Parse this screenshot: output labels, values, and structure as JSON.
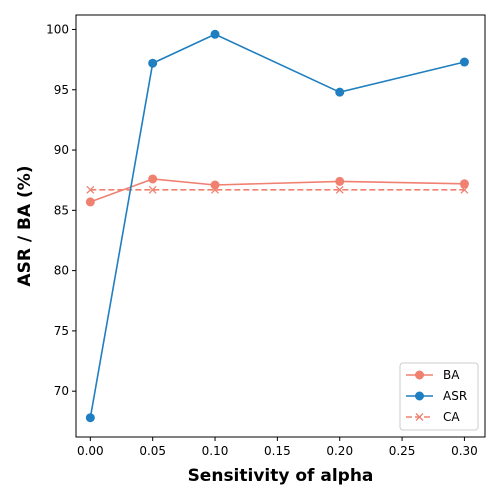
{
  "chart_data": {
    "type": "line",
    "title": "",
    "xlabel": "Sensitivity of alpha",
    "ylabel": "ASR / BA (%)",
    "x": [
      0.0,
      0.05,
      0.1,
      0.2,
      0.3
    ],
    "xlim": [
      -0.0115,
      0.3165
    ],
    "ylim": [
      66.2,
      101.2
    ],
    "xticks": [
      "0.00",
      "0.05",
      "0.10",
      "0.15",
      "0.20",
      "0.25",
      "0.30"
    ],
    "yticks": [
      "70",
      "75",
      "80",
      "85",
      "90",
      "95",
      "100"
    ],
    "grid": false,
    "legend_position": "lower-right",
    "series": [
      {
        "name": "BA",
        "values": [
          85.7,
          87.6,
          87.1,
          87.4,
          87.2
        ],
        "color": "#f08070",
        "marker": "circle",
        "linestyle": "solid"
      },
      {
        "name": "ASR",
        "values": [
          67.8,
          97.2,
          99.6,
          94.8,
          97.3
        ],
        "color": "#1f7fc0",
        "marker": "circle",
        "linestyle": "solid"
      },
      {
        "name": "CA",
        "values": [
          86.7,
          86.7,
          86.7,
          86.7,
          86.7
        ],
        "color": "#f08070",
        "marker": "x",
        "linestyle": "dashed"
      }
    ]
  }
}
